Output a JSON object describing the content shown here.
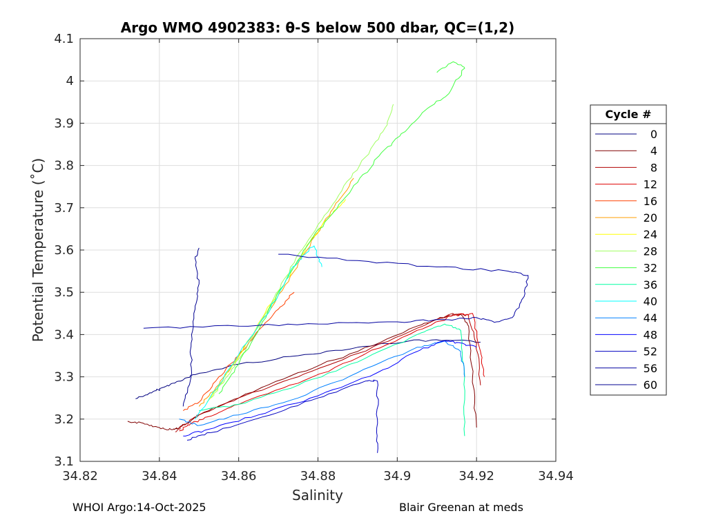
{
  "chart_data": {
    "type": "line",
    "title": "Argo WMO 4902383: θ-S below 500 dbar,  QC=(1,2)",
    "xlabel": "Salinity",
    "ylabel": "Potential Temperature (˚C)",
    "xlim": [
      34.82,
      34.94
    ],
    "ylim": [
      3.1,
      4.1
    ],
    "xticks": [
      "34.82",
      "34.84",
      "34.86",
      "34.88",
      "34.9",
      "34.92",
      "34.94"
    ],
    "yticks": [
      "3.1",
      "3.2",
      "3.3",
      "3.4",
      "3.5",
      "3.6",
      "3.7",
      "3.8",
      "3.9",
      "4",
      "4.1"
    ],
    "grid": true,
    "legend_title": "Cycle #",
    "legend_position": "outside-right",
    "series": [
      {
        "name": "0",
        "color": "#000080",
        "points": [
          [
            34.834,
            3.248
          ],
          [
            34.838,
            3.262
          ],
          [
            34.841,
            3.275
          ],
          [
            34.845,
            3.29
          ],
          [
            34.849,
            3.305
          ],
          [
            34.86,
            3.33
          ],
          [
            34.875,
            3.35
          ],
          [
            34.89,
            3.37
          ],
          [
            34.903,
            3.385
          ],
          [
            34.914,
            3.386
          ],
          [
            34.921,
            3.382
          ]
        ]
      },
      {
        "name": "4",
        "color": "#800000",
        "points": [
          [
            34.832,
            3.195
          ],
          [
            34.836,
            3.19
          ],
          [
            34.84,
            3.18
          ],
          [
            34.843,
            3.175
          ],
          [
            34.845,
            3.18
          ],
          [
            34.847,
            3.19
          ],
          [
            34.85,
            3.21
          ],
          [
            34.86,
            3.25
          ],
          [
            34.875,
            3.31
          ],
          [
            34.89,
            3.36
          ],
          [
            34.905,
            3.42
          ],
          [
            34.913,
            3.445
          ],
          [
            34.916,
            3.448
          ],
          [
            34.918,
            3.42
          ],
          [
            34.919,
            3.3
          ],
          [
            34.92,
            3.18
          ]
        ]
      },
      {
        "name": "8",
        "color": "#b00000",
        "points": [
          [
            34.844,
            3.17
          ],
          [
            34.847,
            3.19
          ],
          [
            34.85,
            3.21
          ],
          [
            34.86,
            3.25
          ],
          [
            34.875,
            3.3
          ],
          [
            34.89,
            3.355
          ],
          [
            34.905,
            3.415
          ],
          [
            34.914,
            3.45
          ],
          [
            34.918,
            3.445
          ],
          [
            34.92,
            3.38
          ],
          [
            34.921,
            3.28
          ]
        ]
      },
      {
        "name": "12",
        "color": "#e00000",
        "points": [
          [
            34.845,
            3.172
          ],
          [
            34.848,
            3.19
          ],
          [
            34.852,
            3.205
          ],
          [
            34.86,
            3.235
          ],
          [
            34.875,
            3.285
          ],
          [
            34.89,
            3.345
          ],
          [
            34.905,
            3.41
          ],
          [
            34.914,
            3.445
          ],
          [
            34.919,
            3.45
          ],
          [
            34.921,
            3.36
          ],
          [
            34.922,
            3.3
          ]
        ]
      },
      {
        "name": "16",
        "color": "#ff4000",
        "points": [
          [
            34.846,
            3.22
          ],
          [
            34.85,
            3.24
          ],
          [
            34.855,
            3.3
          ],
          [
            34.86,
            3.35
          ],
          [
            34.865,
            3.41
          ],
          [
            34.87,
            3.46
          ],
          [
            34.874,
            3.5
          ]
        ]
      },
      {
        "name": "20",
        "color": "#ff9f00",
        "points": [
          [
            34.85,
            3.23
          ],
          [
            34.854,
            3.27
          ],
          [
            34.858,
            3.32
          ],
          [
            34.862,
            3.38
          ],
          [
            34.868,
            3.46
          ],
          [
            34.874,
            3.55
          ],
          [
            34.879,
            3.63
          ],
          [
            34.884,
            3.7
          ],
          [
            34.889,
            3.77
          ]
        ]
      },
      {
        "name": "24",
        "color": "#ffff00",
        "points": [
          [
            34.852,
            3.24
          ],
          [
            34.856,
            3.29
          ],
          [
            34.86,
            3.35
          ],
          [
            34.866,
            3.44
          ],
          [
            34.872,
            3.53
          ],
          [
            34.878,
            3.62
          ],
          [
            34.883,
            3.68
          ],
          [
            34.887,
            3.72
          ]
        ]
      },
      {
        "name": "28",
        "color": "#a0ff60",
        "points": [
          [
            34.853,
            3.25
          ],
          [
            34.857,
            3.3
          ],
          [
            34.862,
            3.37
          ],
          [
            34.868,
            3.47
          ],
          [
            34.874,
            3.57
          ],
          [
            34.88,
            3.66
          ],
          [
            34.886,
            3.74
          ],
          [
            34.892,
            3.82
          ],
          [
            34.897,
            3.89
          ],
          [
            34.899,
            3.945
          ]
        ]
      },
      {
        "name": "32",
        "color": "#40ff40",
        "points": [
          [
            34.855,
            3.26
          ],
          [
            34.86,
            3.33
          ],
          [
            34.866,
            3.43
          ],
          [
            34.872,
            3.53
          ],
          [
            34.878,
            3.62
          ],
          [
            34.884,
            3.69
          ],
          [
            34.89,
            3.76
          ],
          [
            34.896,
            3.83
          ],
          [
            34.902,
            3.88
          ],
          [
            34.907,
            3.93
          ],
          [
            34.913,
            3.97
          ],
          [
            34.917,
            4.03
          ],
          [
            34.914,
            4.045
          ],
          [
            34.91,
            4.02
          ]
        ]
      },
      {
        "name": "36",
        "color": "#00ffa0",
        "points": [
          [
            34.85,
            3.22
          ],
          [
            34.86,
            3.235
          ],
          [
            34.875,
            3.28
          ],
          [
            34.89,
            3.335
          ],
          [
            34.905,
            3.4
          ],
          [
            34.912,
            3.425
          ],
          [
            34.916,
            3.41
          ],
          [
            34.917,
            3.3
          ],
          [
            34.917,
            3.16
          ]
        ]
      },
      {
        "name": "40",
        "color": "#00ffff",
        "points": [
          [
            34.849,
            3.2
          ],
          [
            34.855,
            3.28
          ],
          [
            34.862,
            3.38
          ],
          [
            34.868,
            3.46
          ],
          [
            34.873,
            3.55
          ],
          [
            34.876,
            3.585
          ],
          [
            34.879,
            3.61
          ],
          [
            34.881,
            3.56
          ]
        ]
      },
      {
        "name": "44",
        "color": "#0080ff",
        "points": [
          [
            34.845,
            3.2
          ],
          [
            34.85,
            3.185
          ],
          [
            34.86,
            3.21
          ],
          [
            34.875,
            3.25
          ],
          [
            34.89,
            3.31
          ],
          [
            34.905,
            3.37
          ],
          [
            34.912,
            3.385
          ],
          [
            34.916,
            3.36
          ],
          [
            34.917,
            3.3
          ]
        ]
      },
      {
        "name": "48",
        "color": "#0000ff",
        "points": [
          [
            34.846,
            3.16
          ],
          [
            34.852,
            3.175
          ],
          [
            34.865,
            3.21
          ],
          [
            34.88,
            3.255
          ],
          [
            34.895,
            3.31
          ],
          [
            34.905,
            3.36
          ],
          [
            34.912,
            3.385
          ],
          [
            34.916,
            3.38
          ],
          [
            34.92,
            3.37
          ]
        ]
      },
      {
        "name": "52",
        "color": "#0000c0",
        "points": [
          [
            34.847,
            3.15
          ],
          [
            34.853,
            3.168
          ],
          [
            34.866,
            3.205
          ],
          [
            34.88,
            3.25
          ],
          [
            34.892,
            3.29
          ],
          [
            34.895,
            3.29
          ],
          [
            34.895,
            3.2
          ],
          [
            34.895,
            3.12
          ]
        ]
      },
      {
        "name": "56",
        "color": "#0000a0",
        "points": [
          [
            34.836,
            3.415
          ],
          [
            34.86,
            3.42
          ],
          [
            34.88,
            3.425
          ],
          [
            34.9,
            3.43
          ],
          [
            34.913,
            3.435
          ],
          [
            34.92,
            3.44
          ],
          [
            34.925,
            3.43
          ],
          [
            34.929,
            3.44
          ],
          [
            34.932,
            3.49
          ],
          [
            34.933,
            3.54
          ],
          [
            34.928,
            3.55
          ],
          [
            34.91,
            3.56
          ],
          [
            34.89,
            3.575
          ],
          [
            34.87,
            3.59
          ]
        ]
      },
      {
        "name": "60",
        "color": "#000090",
        "points": [
          [
            34.846,
            3.23
          ],
          [
            34.848,
            3.3
          ],
          [
            34.848,
            3.38
          ],
          [
            34.849,
            3.46
          ],
          [
            34.85,
            3.52
          ],
          [
            34.849,
            3.58
          ],
          [
            34.85,
            3.605
          ]
        ]
      }
    ]
  },
  "footer": {
    "left": "WHOI Argo:14-Oct-2025",
    "right": "Blair Greenan at meds"
  }
}
